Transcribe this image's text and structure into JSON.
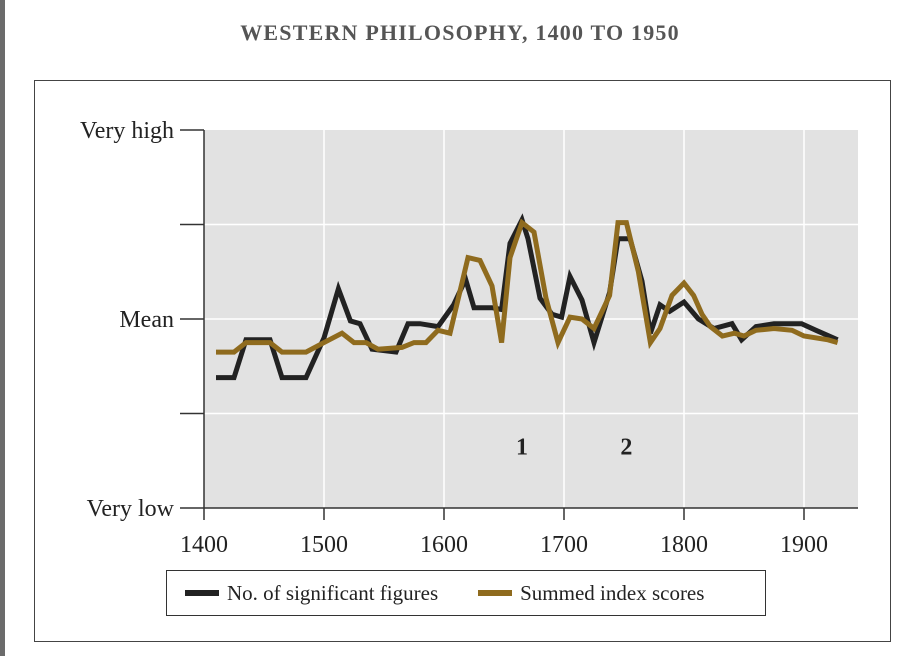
{
  "title": "WESTERN PHILOSOPHY, 1400 TO 1950",
  "chart_data": {
    "type": "line",
    "title": "WESTERN PHILOSOPHY, 1400 TO 1950",
    "xlabel": "",
    "ylabel": "",
    "xlim": [
      1400,
      1945
    ],
    "ylim": [
      -2,
      2
    ],
    "x_ticks": [
      1400,
      1500,
      1600,
      1700,
      1800,
      1900
    ],
    "y_ticks": [
      {
        "value": 2,
        "label": "Very high"
      },
      {
        "value": 1,
        "label": ""
      },
      {
        "value": 0,
        "label": "Mean"
      },
      {
        "value": -1,
        "label": ""
      },
      {
        "value": -2,
        "label": "Very low"
      }
    ],
    "grid": true,
    "legend_position": "bottom",
    "annotations": [
      {
        "text": "1",
        "x": 1665,
        "y": -1.35
      },
      {
        "text": "2",
        "x": 1752,
        "y": -1.35
      }
    ],
    "series": [
      {
        "name": "No. of significant figures",
        "color": "#222222",
        "points": [
          [
            1410,
            -0.62
          ],
          [
            1425,
            -0.62
          ],
          [
            1435,
            -0.22
          ],
          [
            1455,
            -0.22
          ],
          [
            1465,
            -0.62
          ],
          [
            1485,
            -0.62
          ],
          [
            1500,
            -0.2
          ],
          [
            1512,
            0.32
          ],
          [
            1522,
            -0.02
          ],
          [
            1530,
            -0.05
          ],
          [
            1540,
            -0.32
          ],
          [
            1560,
            -0.35
          ],
          [
            1570,
            -0.05
          ],
          [
            1580,
            -0.05
          ],
          [
            1595,
            -0.08
          ],
          [
            1608,
            0.15
          ],
          [
            1618,
            0.42
          ],
          [
            1625,
            0.12
          ],
          [
            1640,
            0.12
          ],
          [
            1648,
            0.1
          ],
          [
            1655,
            0.8
          ],
          [
            1665,
            1.05
          ],
          [
            1670,
            0.85
          ],
          [
            1680,
            0.22
          ],
          [
            1690,
            0.05
          ],
          [
            1698,
            0.02
          ],
          [
            1705,
            0.45
          ],
          [
            1715,
            0.2
          ],
          [
            1725,
            -0.25
          ],
          [
            1738,
            0.28
          ],
          [
            1745,
            0.85
          ],
          [
            1755,
            0.85
          ],
          [
            1765,
            0.4
          ],
          [
            1772,
            -0.15
          ],
          [
            1780,
            0.15
          ],
          [
            1788,
            0.08
          ],
          [
            1800,
            0.18
          ],
          [
            1812,
            0.0
          ],
          [
            1825,
            -0.1
          ],
          [
            1840,
            -0.05
          ],
          [
            1848,
            -0.22
          ],
          [
            1860,
            -0.08
          ],
          [
            1875,
            -0.05
          ],
          [
            1885,
            -0.05
          ],
          [
            1898,
            -0.05
          ],
          [
            1910,
            -0.12
          ],
          [
            1928,
            -0.22
          ]
        ]
      },
      {
        "name": "Summed index scores",
        "color": "#8f6b1e",
        "points": [
          [
            1410,
            -0.35
          ],
          [
            1425,
            -0.35
          ],
          [
            1435,
            -0.25
          ],
          [
            1455,
            -0.25
          ],
          [
            1465,
            -0.35
          ],
          [
            1485,
            -0.35
          ],
          [
            1500,
            -0.25
          ],
          [
            1515,
            -0.15
          ],
          [
            1525,
            -0.25
          ],
          [
            1535,
            -0.25
          ],
          [
            1545,
            -0.32
          ],
          [
            1565,
            -0.3
          ],
          [
            1575,
            -0.25
          ],
          [
            1585,
            -0.25
          ],
          [
            1595,
            -0.12
          ],
          [
            1605,
            -0.15
          ],
          [
            1620,
            0.65
          ],
          [
            1630,
            0.62
          ],
          [
            1640,
            0.35
          ],
          [
            1648,
            -0.25
          ],
          [
            1655,
            0.65
          ],
          [
            1665,
            1.02
          ],
          [
            1675,
            0.92
          ],
          [
            1685,
            0.22
          ],
          [
            1695,
            -0.25
          ],
          [
            1705,
            0.02
          ],
          [
            1715,
            0.0
          ],
          [
            1725,
            -0.1
          ],
          [
            1738,
            0.25
          ],
          [
            1745,
            1.02
          ],
          [
            1752,
            1.02
          ],
          [
            1762,
            0.5
          ],
          [
            1772,
            -0.25
          ],
          [
            1780,
            -0.1
          ],
          [
            1790,
            0.25
          ],
          [
            1800,
            0.38
          ],
          [
            1808,
            0.25
          ],
          [
            1815,
            0.05
          ],
          [
            1822,
            -0.08
          ],
          [
            1832,
            -0.18
          ],
          [
            1842,
            -0.15
          ],
          [
            1850,
            -0.18
          ],
          [
            1860,
            -0.12
          ],
          [
            1875,
            -0.1
          ],
          [
            1890,
            -0.12
          ],
          [
            1900,
            -0.18
          ],
          [
            1920,
            -0.22
          ],
          [
            1928,
            -0.25
          ]
        ]
      }
    ]
  }
}
